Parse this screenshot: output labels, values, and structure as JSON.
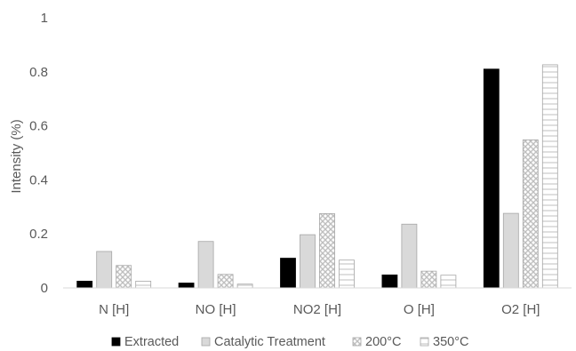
{
  "chart_data": {
    "type": "bar",
    "title": "",
    "xlabel": "",
    "ylabel": "Intensity (%)",
    "ylim": [
      0,
      1
    ],
    "yticks": [
      "0",
      "0.2",
      "0.4",
      "0.6",
      "0.8",
      "1"
    ],
    "grid": false,
    "legend_position": "bottom",
    "categories": [
      "N [H]",
      "NO [H]",
      "NO2 [H]",
      "O [H]",
      "O2 [H]"
    ],
    "series": [
      {
        "name": "Extracted",
        "values": [
          0.025,
          0.018,
          0.11,
          0.048,
          0.81
        ],
        "color": "#000000",
        "pattern": "solid"
      },
      {
        "name": "Catalytic Treatment",
        "values": [
          0.135,
          0.172,
          0.197,
          0.236,
          0.276
        ],
        "color": "#d9d9d9",
        "pattern": "solid"
      },
      {
        "name": "200°C",
        "values": [
          0.083,
          0.05,
          0.275,
          0.062,
          0.548
        ],
        "color": "#d9d9d9",
        "pattern": "crosshatch"
      },
      {
        "name": "350°C",
        "values": [
          0.025,
          0.014,
          0.103,
          0.047,
          0.826
        ],
        "color": "#ffffff",
        "pattern": "horizontal-lines"
      }
    ]
  }
}
